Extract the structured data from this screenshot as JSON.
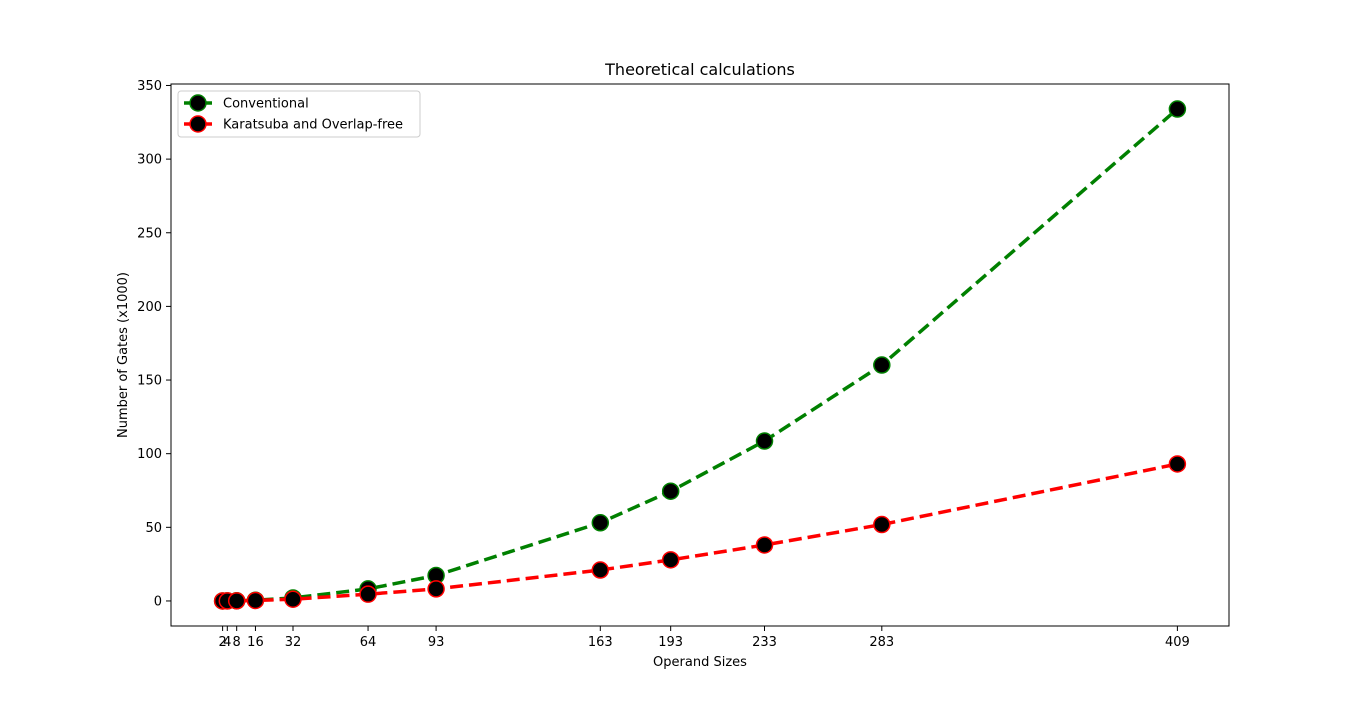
{
  "chart_data": {
    "type": "line",
    "title": "Theoretical calculations",
    "xlabel": "Operand Sizes",
    "ylabel": "Number of Gates (x1000)",
    "x": [
      2,
      4,
      8,
      16,
      32,
      64,
      93,
      163,
      193,
      233,
      283,
      409
    ],
    "xticks": [
      2,
      4,
      8,
      16,
      32,
      64,
      93,
      163,
      193,
      233,
      283,
      409
    ],
    "xlim": [
      -20,
      431
    ],
    "ylim": [
      -17,
      351
    ],
    "yticks": [
      0,
      50,
      100,
      150,
      200,
      250,
      300,
      350
    ],
    "grid": false,
    "legend_position": "upper left",
    "series": [
      {
        "name": "Conventional",
        "line_color": "#008000",
        "marker_face": "#000000",
        "marker_edge": "#008000",
        "line_style": "dashed",
        "marker": "circle",
        "values": [
          0.008,
          0.032,
          0.128,
          0.512,
          2.048,
          8.19,
          17.3,
          53.1,
          74.5,
          108.6,
          160.2,
          334.0
        ]
      },
      {
        "name": "Karatsuba and Overlap-free",
        "line_color": "#ff0000",
        "marker_face": "#000000",
        "marker_edge": "#ff0000",
        "line_style": "dashed",
        "marker": "circle",
        "values": [
          0.006,
          0.024,
          0.09,
          0.33,
          1.2,
          4.6,
          8.2,
          21.0,
          27.9,
          38.0,
          51.9,
          93.0
        ]
      }
    ]
  }
}
